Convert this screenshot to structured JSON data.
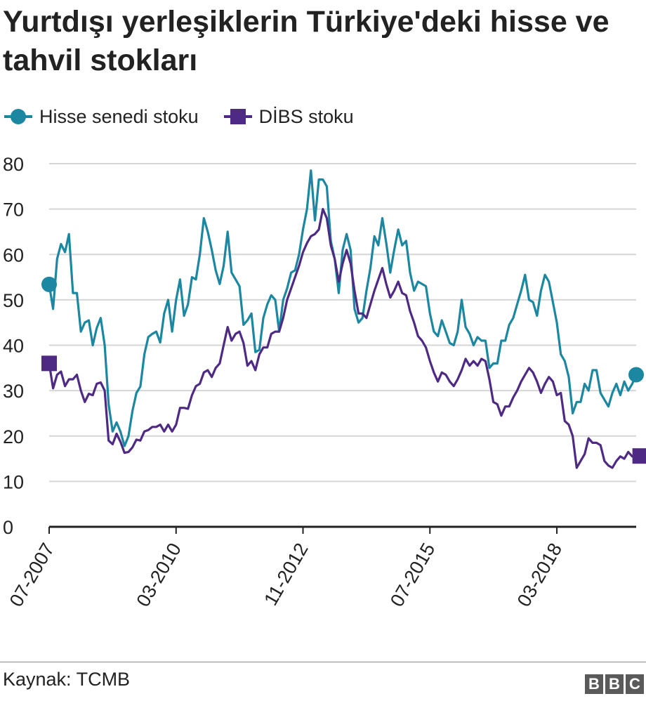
{
  "header": {
    "title": "Yurtdışı yerleşiklerin Türkiye'deki hisse ve tahvil stokları"
  },
  "footer": {
    "source": "Kaynak: TCMB",
    "logo_letters": [
      "B",
      "B",
      "C"
    ]
  },
  "colors": {
    "hisse": "#1b87a0",
    "dibs": "#4e2a84",
    "grid": "#d6d6d6",
    "axis": "#222222"
  },
  "chart_data": {
    "type": "line",
    "xlabel": "",
    "ylabel": "",
    "ylim": [
      0,
      80
    ],
    "yticks": [
      0,
      10,
      20,
      30,
      40,
      50,
      60,
      70,
      80
    ],
    "xtick_labels": [
      "07-2007",
      "03-2010",
      "11-2012",
      "07-2015",
      "03-2018"
    ],
    "xtick_index": [
      0,
      32,
      64,
      96,
      128
    ],
    "grid": true,
    "legend_position": "top-left",
    "series": [
      {
        "name": "Hisse senedi stoku",
        "key": "hisse",
        "marker": "circle",
        "values": [
          53.4,
          48.0,
          59.0,
          62.3,
          60.5,
          64.5,
          51.5,
          51.5,
          43.0,
          45.0,
          45.5,
          40.0,
          43.8,
          46.0,
          40.0,
          27.0,
          21.0,
          23.0,
          20.9,
          17.8,
          20.0,
          25.5,
          29.5,
          30.9,
          38.0,
          41.8,
          42.5,
          43.0,
          40.6,
          47.0,
          50.0,
          43.0,
          50.0,
          54.5,
          46.5,
          49.0,
          55.0,
          54.5,
          60.0,
          68.0,
          65.0,
          61.0,
          56.5,
          53.5,
          57.5,
          65.0,
          56.0,
          54.5,
          53.0,
          44.5,
          45.5,
          47.0,
          38.5,
          39.0,
          46.0,
          49.0,
          51.0,
          50.0,
          43.0,
          50.0,
          52.5,
          56.0,
          56.5,
          60.0,
          65.5,
          70.0,
          78.5,
          67.5,
          76.5,
          76.5,
          75.0,
          63.0,
          59.0,
          51.5,
          61.0,
          64.5,
          61.0,
          48.0,
          45.0,
          46.0,
          52.0,
          57.0,
          64.0,
          62.0,
          68.0,
          62.5,
          56.0,
          61.0,
          65.5,
          62.0,
          63.0,
          56.0,
          52.0,
          54.0,
          53.5,
          53.0,
          47.0,
          43.0,
          42.0,
          45.5,
          43.0,
          40.5,
          40.0,
          43.0,
          50.0,
          44.0,
          42.5,
          40.0,
          41.8,
          41.0,
          41.0,
          35.0,
          36.0,
          36.0,
          41.0,
          41.0,
          44.5,
          46.0,
          49.0,
          52.0,
          55.5,
          50.0,
          49.5,
          46.5,
          52.0,
          55.5,
          54.0,
          49.5,
          45.0,
          38.0,
          36.5,
          33.0,
          25.0,
          27.5,
          27.5,
          31.5,
          30.0,
          34.5,
          34.5,
          29.5,
          28.0,
          26.5,
          29.5,
          31.5,
          29.0,
          32.0,
          30.0,
          31.5,
          33.5
        ]
      },
      {
        "name": "DİBS stoku",
        "key": "dibs",
        "marker": "square",
        "values": [
          36.0,
          30.5,
          33.5,
          34.2,
          31.0,
          32.5,
          32.5,
          33.5,
          30.0,
          27.5,
          29.3,
          29.0,
          31.5,
          31.8,
          30.0,
          19.0,
          18.2,
          20.5,
          18.7,
          16.3,
          16.5,
          17.5,
          19.2,
          19.0,
          21.0,
          21.3,
          22.0,
          22.0,
          22.5,
          21.0,
          22.5,
          21.0,
          22.5,
          26.2,
          26.2,
          26.0,
          29.0,
          31.0,
          31.5,
          34.0,
          34.5,
          33.0,
          35.0,
          36.0,
          40.0,
          44.0,
          41.0,
          42.5,
          43.0,
          40.5,
          35.5,
          36.5,
          34.5,
          38.0,
          39.5,
          39.5,
          42.5,
          43.0,
          43.0,
          46.0,
          50.0,
          52.5,
          55.0,
          57.5,
          60.5,
          62.5,
          64.0,
          64.5,
          65.5,
          70.0,
          68.0,
          62.0,
          59.0,
          54.0,
          58.0,
          61.0,
          58.0,
          52.0,
          47.0,
          47.0,
          46.0,
          49.0,
          52.0,
          54.5,
          57.0,
          53.5,
          50.5,
          52.0,
          54.0,
          51.5,
          51.0,
          47.5,
          45.0,
          42.0,
          41.0,
          39.5,
          36.5,
          34.0,
          32.0,
          34.0,
          33.5,
          32.0,
          31.0,
          32.5,
          34.5,
          37.0,
          35.5,
          36.5,
          35.5,
          37.0,
          36.5,
          32.5,
          27.5,
          27.0,
          24.5,
          26.5,
          26.5,
          28.5,
          30.0,
          32.0,
          33.5,
          35.0,
          34.0,
          32.0,
          29.5,
          31.5,
          33.0,
          32.0,
          29.0,
          29.5,
          23.3,
          22.5,
          20.0,
          13.0,
          14.5,
          16.0,
          19.5,
          18.5,
          18.5,
          18.0,
          14.5,
          13.5,
          13.0,
          14.5,
          15.5,
          15.0,
          16.5,
          15.5,
          15.8,
          15.6
        ]
      }
    ]
  }
}
